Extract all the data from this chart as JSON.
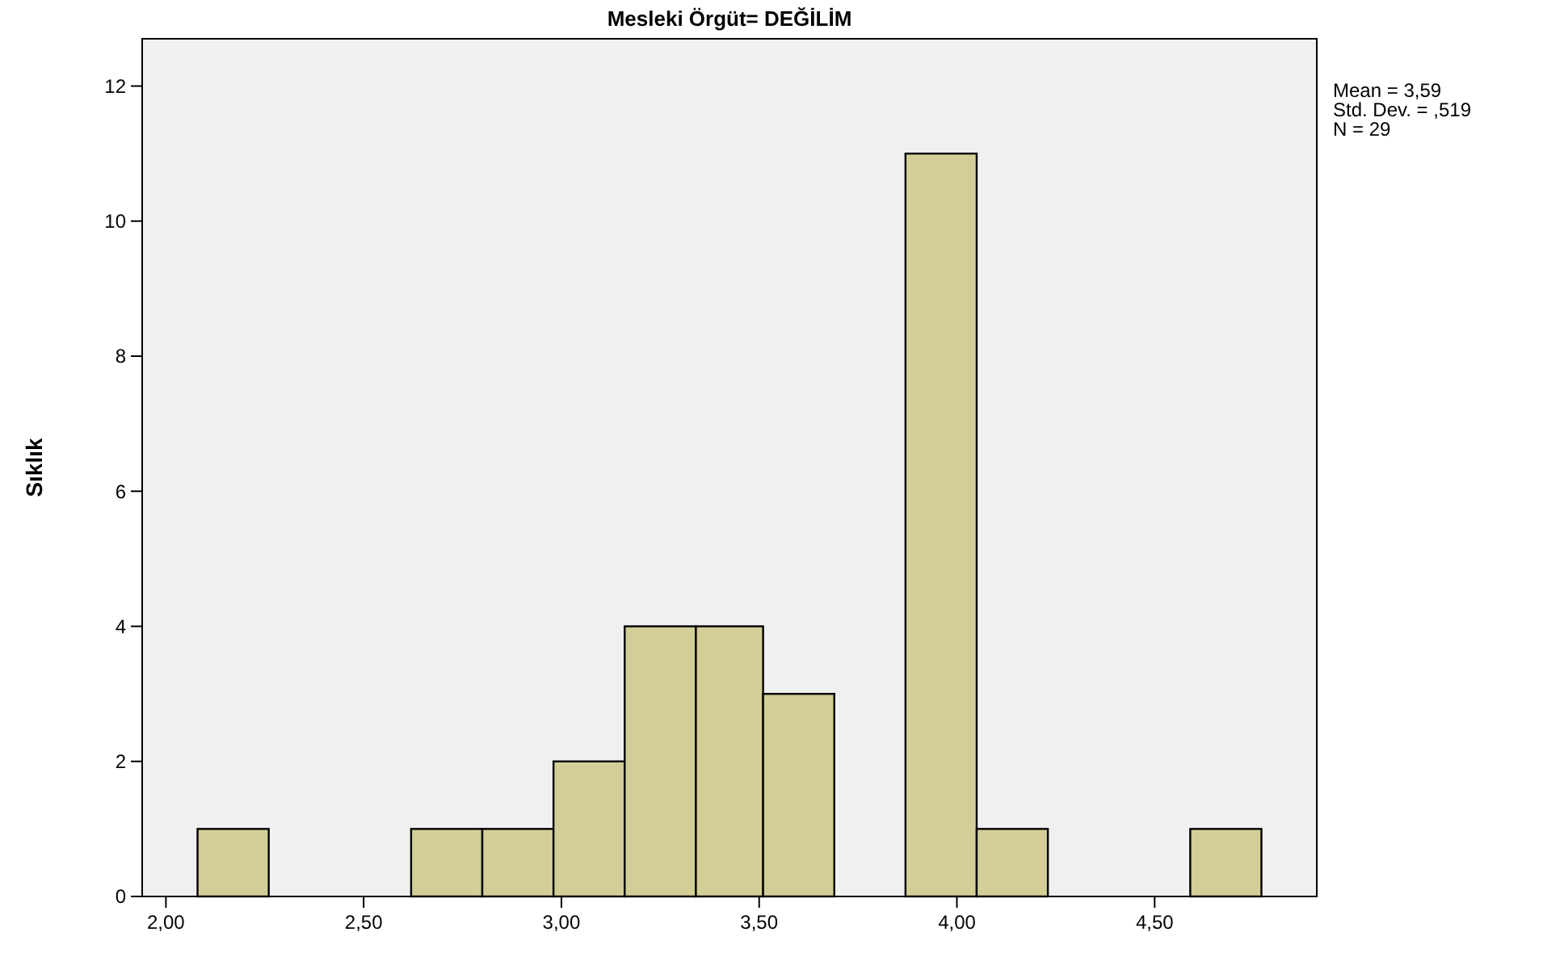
{
  "chart_data": {
    "type": "histogram",
    "title": "Mesleki Örgüt= DEĞİLİM",
    "ylabel": "Sıklık",
    "bins": [
      2.08,
      2.26,
      2.62,
      2.8,
      2.98,
      3.16,
      3.34,
      3.51,
      3.69,
      3.87,
      4.05,
      4.23,
      4.59,
      4.77
    ],
    "values": [
      1,
      0,
      1,
      1,
      2,
      4,
      4,
      3,
      0,
      11,
      1,
      0,
      1
    ],
    "color": "#d3ce97",
    "xlim": [
      1.94,
      4.91
    ],
    "xticks": [
      {
        "value": 2,
        "label": "2,00"
      },
      {
        "value": 2.5,
        "label": "2,50"
      },
      {
        "value": 3,
        "label": "3,00"
      },
      {
        "value": 3.5,
        "label": "3,50"
      },
      {
        "value": 4,
        "label": "4,00"
      },
      {
        "value": 4.5,
        "label": "4,50"
      }
    ],
    "ylim": [
      0,
      12.7
    ],
    "yticks": [
      0,
      2,
      4,
      6,
      8,
      10,
      12
    ],
    "annotations": [
      "Mean = 3,59",
      "Std. Dev. = ,519",
      "N = 29"
    ],
    "grid": false
  }
}
